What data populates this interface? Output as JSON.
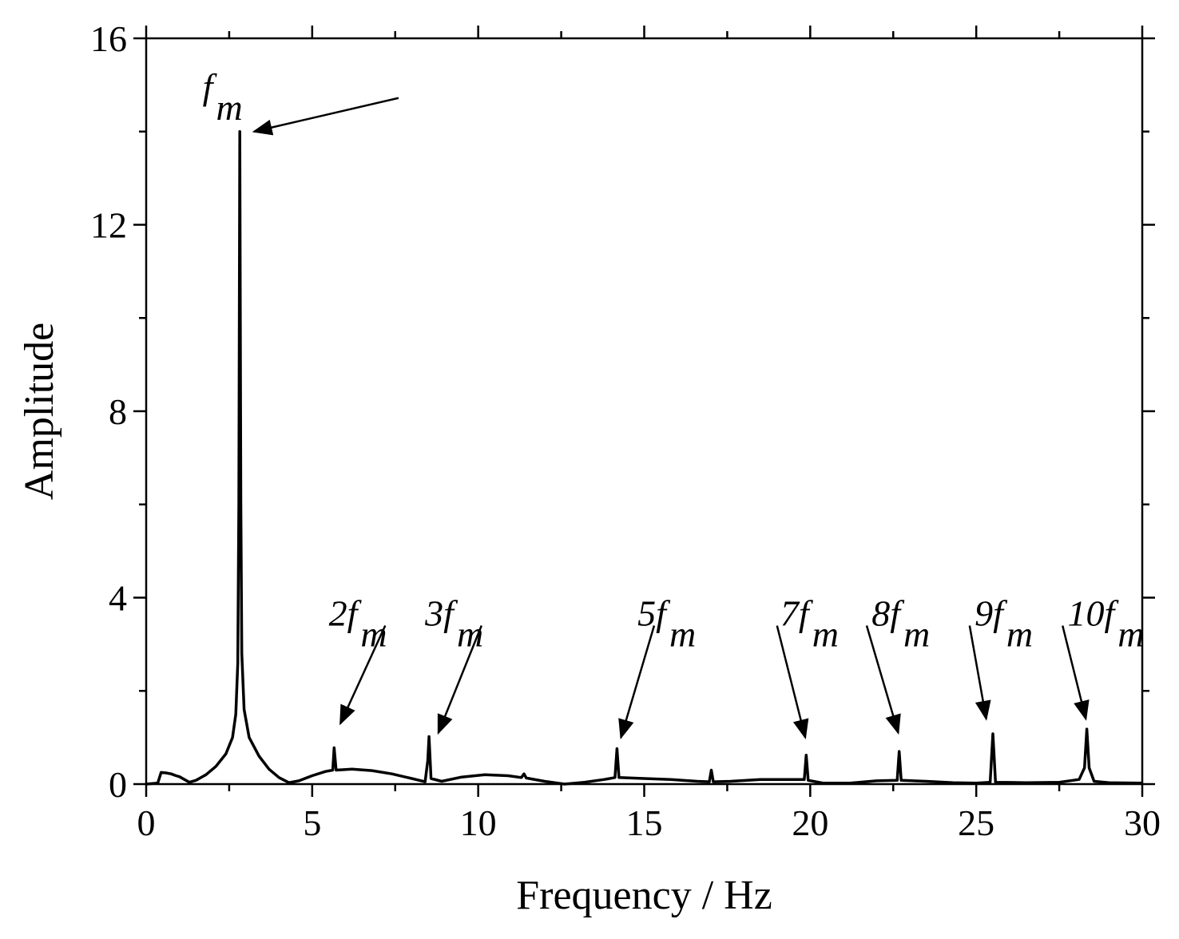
{
  "chart_data": {
    "type": "line",
    "title": "",
    "xlabel": "Frequency / Hz",
    "ylabel": "Amplitude",
    "xlim": [
      0,
      30
    ],
    "ylim": [
      0,
      16
    ],
    "xticks": [
      0,
      5,
      10,
      15,
      20,
      25,
      30
    ],
    "yticks": [
      0,
      4,
      8,
      12,
      16
    ],
    "x_minor_step": 2.5,
    "y_minor_step": 2,
    "grid": false,
    "line_color": "#000000",
    "series": [
      {
        "name": "",
        "points": [
          [
            0.0,
            0.0
          ],
          [
            0.35,
            0.02
          ],
          [
            0.45,
            0.25
          ],
          [
            0.6,
            0.24
          ],
          [
            0.75,
            0.22
          ],
          [
            0.9,
            0.18
          ],
          [
            1.0,
            0.16
          ],
          [
            1.15,
            0.1
          ],
          [
            1.3,
            0.04
          ],
          [
            1.5,
            0.08
          ],
          [
            1.8,
            0.2
          ],
          [
            2.1,
            0.38
          ],
          [
            2.4,
            0.65
          ],
          [
            2.6,
            1.0
          ],
          [
            2.7,
            1.5
          ],
          [
            2.76,
            2.6
          ],
          [
            2.79,
            6.0
          ],
          [
            2.82,
            14.0
          ],
          [
            2.85,
            6.0
          ],
          [
            2.88,
            2.8
          ],
          [
            2.95,
            1.6
          ],
          [
            3.1,
            1.0
          ],
          [
            3.4,
            0.6
          ],
          [
            3.7,
            0.32
          ],
          [
            4.0,
            0.14
          ],
          [
            4.3,
            0.03
          ],
          [
            4.6,
            0.07
          ],
          [
            5.0,
            0.18
          ],
          [
            5.4,
            0.27
          ],
          [
            5.62,
            0.3
          ],
          [
            5.66,
            0.78
          ],
          [
            5.72,
            0.3
          ],
          [
            6.2,
            0.32
          ],
          [
            6.8,
            0.29
          ],
          [
            7.4,
            0.22
          ],
          [
            8.0,
            0.12
          ],
          [
            8.4,
            0.05
          ],
          [
            8.48,
            0.5
          ],
          [
            8.52,
            1.02
          ],
          [
            8.58,
            0.12
          ],
          [
            8.9,
            0.06
          ],
          [
            9.5,
            0.15
          ],
          [
            10.2,
            0.2
          ],
          [
            10.9,
            0.18
          ],
          [
            11.3,
            0.14
          ],
          [
            11.38,
            0.22
          ],
          [
            11.45,
            0.13
          ],
          [
            12.0,
            0.06
          ],
          [
            12.6,
            0.0
          ],
          [
            13.2,
            0.04
          ],
          [
            13.8,
            0.1
          ],
          [
            14.12,
            0.14
          ],
          [
            14.18,
            0.76
          ],
          [
            14.24,
            0.14
          ],
          [
            15.0,
            0.12
          ],
          [
            15.8,
            0.1
          ],
          [
            16.6,
            0.06
          ],
          [
            16.96,
            0.05
          ],
          [
            17.02,
            0.3
          ],
          [
            17.08,
            0.05
          ],
          [
            17.6,
            0.06
          ],
          [
            18.5,
            0.1
          ],
          [
            19.3,
            0.1
          ],
          [
            19.82,
            0.1
          ],
          [
            19.88,
            0.62
          ],
          [
            19.94,
            0.08
          ],
          [
            20.4,
            0.02
          ],
          [
            21.2,
            0.02
          ],
          [
            22.0,
            0.07
          ],
          [
            22.62,
            0.08
          ],
          [
            22.68,
            0.7
          ],
          [
            22.74,
            0.08
          ],
          [
            23.5,
            0.06
          ],
          [
            24.3,
            0.03
          ],
          [
            25.0,
            0.02
          ],
          [
            25.42,
            0.04
          ],
          [
            25.5,
            1.08
          ],
          [
            25.58,
            0.04
          ],
          [
            26.5,
            0.03
          ],
          [
            27.5,
            0.04
          ],
          [
            28.1,
            0.1
          ],
          [
            28.26,
            0.35
          ],
          [
            28.33,
            1.18
          ],
          [
            28.4,
            0.35
          ],
          [
            28.55,
            0.06
          ],
          [
            29.0,
            0.03
          ],
          [
            30.0,
            0.02
          ]
        ]
      }
    ],
    "annotations": [
      {
        "main": "f",
        "sub": "m",
        "text_x": 1.7,
        "text_y": 14.7,
        "arrow_from": [
          7.6,
          14.72
        ],
        "arrow_to": [
          3.25,
          14.0
        ]
      },
      {
        "main": "2f",
        "sub": "m",
        "text_x": 5.5,
        "text_y": 3.4,
        "arrow_from": [
          7.2,
          3.4
        ],
        "arrow_to": [
          5.85,
          1.3
        ]
      },
      {
        "main": "3f",
        "sub": "m",
        "text_x": 8.4,
        "text_y": 3.4,
        "arrow_from": [
          10.1,
          3.4
        ],
        "arrow_to": [
          8.8,
          1.1
        ]
      },
      {
        "main": "5f",
        "sub": "m",
        "text_x": 14.8,
        "text_y": 3.4,
        "arrow_from": [
          15.3,
          3.4
        ],
        "arrow_to": [
          14.3,
          1.0
        ]
      },
      {
        "main": "7f",
        "sub": "m",
        "text_x": 19.1,
        "text_y": 3.4,
        "arrow_from": [
          19.0,
          3.4
        ],
        "arrow_to": [
          19.85,
          1.0
        ]
      },
      {
        "main": "8f",
        "sub": "m",
        "text_x": 21.85,
        "text_y": 3.4,
        "arrow_from": [
          21.7,
          3.4
        ],
        "arrow_to": [
          22.65,
          1.1
        ]
      },
      {
        "main": "9f",
        "sub": "m",
        "text_x": 24.95,
        "text_y": 3.4,
        "arrow_from": [
          24.8,
          3.4
        ],
        "arrow_to": [
          25.3,
          1.4
        ]
      },
      {
        "main": "10f",
        "sub": "m",
        "text_x": 27.75,
        "text_y": 3.4,
        "arrow_from": [
          27.6,
          3.4
        ],
        "arrow_to": [
          28.3,
          1.4
        ]
      }
    ]
  }
}
